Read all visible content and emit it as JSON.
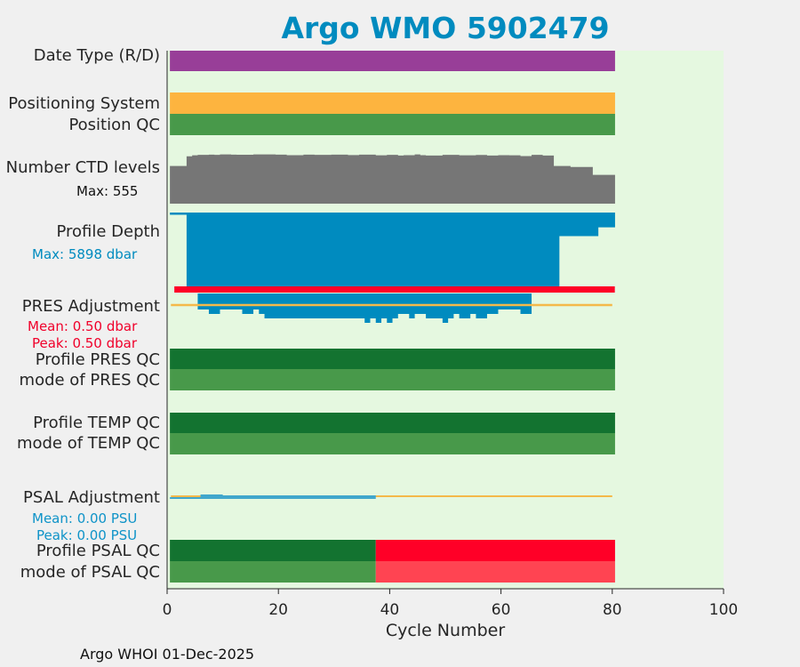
{
  "title": "Argo WMO 5902479",
  "footer": "Argo WHOI 01-Dec-2025",
  "labels": {
    "date_type": "Date Type (R/D)",
    "positioning_system": "Positioning System",
    "position_qc": "Position QC",
    "n_levels": "Number CTD levels",
    "n_levels_max": "Max: 555",
    "profile_depth": "Profile Depth",
    "depth_max": "Max: 5898 dbar",
    "pres_adj": "PRES Adjustment",
    "pres_mean": "Mean: 0.50 dbar",
    "pres_peak": "Peak: 0.50 dbar",
    "profile_pres_qc": "Profile PRES QC",
    "mode_pres_qc": "mode of PRES QC",
    "profile_temp_qc": "Profile TEMP QC",
    "mode_temp_qc": "mode of TEMP QC",
    "psal_adj": "PSAL Adjustment",
    "psal_mean": "Mean: 0.00 PSU",
    "psal_peak": "Peak: 0.00 PSU",
    "profile_psal_qc": "Profile PSAL QC",
    "mode_psal_qc": "mode of PSAL QC"
  },
  "colors": {
    "plot_bg": "#e5f8e0",
    "date_type": "#983e98",
    "positioning": "#fdb43f",
    "qc_good": "#48994a",
    "qc_good_dark": "#137330",
    "qc_bad": "#ff0027",
    "qc_bad_light": "#ff4452",
    "levels": "#767676",
    "depth": "#008bbf",
    "pres_mean_text": "#f0002a",
    "adj_line": "#f4b94a",
    "psal_line": "#41a7cc"
  },
  "chart_data": {
    "type": "bar",
    "xlabel": "Cycle Number",
    "xlim": [
      0,
      100
    ],
    "xticks": [
      0,
      20,
      40,
      60,
      80,
      100
    ],
    "cycles": [
      1,
      80
    ],
    "levels_max": 555,
    "levels_profile": [
      [
        1,
        405
      ],
      [
        3,
        405
      ],
      [
        4,
        510
      ],
      [
        5,
        520
      ],
      [
        6,
        525
      ],
      [
        8,
        528
      ],
      [
        9,
        525
      ],
      [
        10,
        530
      ],
      [
        12,
        528
      ],
      [
        13,
        526
      ],
      [
        16,
        530
      ],
      [
        20,
        528
      ],
      [
        22,
        522
      ],
      [
        25,
        528
      ],
      [
        27,
        525
      ],
      [
        30,
        528
      ],
      [
        33,
        523
      ],
      [
        35,
        527
      ],
      [
        38,
        520
      ],
      [
        40,
        525
      ],
      [
        42,
        518
      ],
      [
        43,
        522
      ],
      [
        45,
        530
      ],
      [
        46,
        522
      ],
      [
        47,
        518
      ],
      [
        50,
        525
      ],
      [
        53,
        520
      ],
      [
        56,
        524
      ],
      [
        58,
        518
      ],
      [
        60,
        522
      ],
      [
        62,
        520
      ],
      [
        64,
        512
      ],
      [
        66,
        525
      ],
      [
        68,
        518
      ],
      [
        70,
        405
      ],
      [
        73,
        395
      ],
      [
        77,
        310
      ],
      [
        80,
        310
      ]
    ],
    "depth_max_dbar": 5898,
    "depth_profile": [
      [
        1,
        180
      ],
      [
        3,
        180
      ],
      [
        4,
        5898
      ],
      [
        70,
        5898
      ],
      [
        71,
        1880
      ],
      [
        77,
        1880
      ],
      [
        78,
        1180
      ],
      [
        80,
        1180
      ]
    ],
    "pres_adjustment_dbar": 0.5,
    "pres_deep_extent": [
      [
        6,
        1
      ],
      [
        8,
        2
      ],
      [
        10,
        1
      ],
      [
        12,
        1
      ],
      [
        14,
        2
      ],
      [
        16,
        1
      ],
      [
        17,
        2
      ],
      [
        18,
        3
      ],
      [
        20,
        3
      ],
      [
        22,
        3
      ],
      [
        26,
        3
      ],
      [
        30,
        3
      ],
      [
        34,
        3
      ],
      [
        36,
        4
      ],
      [
        37,
        3
      ],
      [
        38,
        4
      ],
      [
        39,
        3
      ],
      [
        40,
        4
      ],
      [
        41,
        3
      ],
      [
        42,
        2
      ],
      [
        44,
        3
      ],
      [
        45,
        2
      ],
      [
        47,
        3
      ],
      [
        49,
        3
      ],
      [
        50,
        4
      ],
      [
        51,
        3
      ],
      [
        52,
        2
      ],
      [
        53,
        3
      ],
      [
        55,
        2
      ],
      [
        56,
        3
      ],
      [
        58,
        2
      ],
      [
        60,
        1
      ],
      [
        62,
        1
      ],
      [
        63,
        1
      ],
      [
        64,
        2
      ],
      [
        65,
        2
      ]
    ],
    "pres_qc_mode": "good",
    "temp_qc_mode": "good",
    "psal_adjustment_psu": 0.0,
    "psal_adjusted_cycles": [
      1,
      37
    ],
    "psal_qc": {
      "good_until_cycle": 37,
      "bad_from_cycle": 38
    }
  }
}
